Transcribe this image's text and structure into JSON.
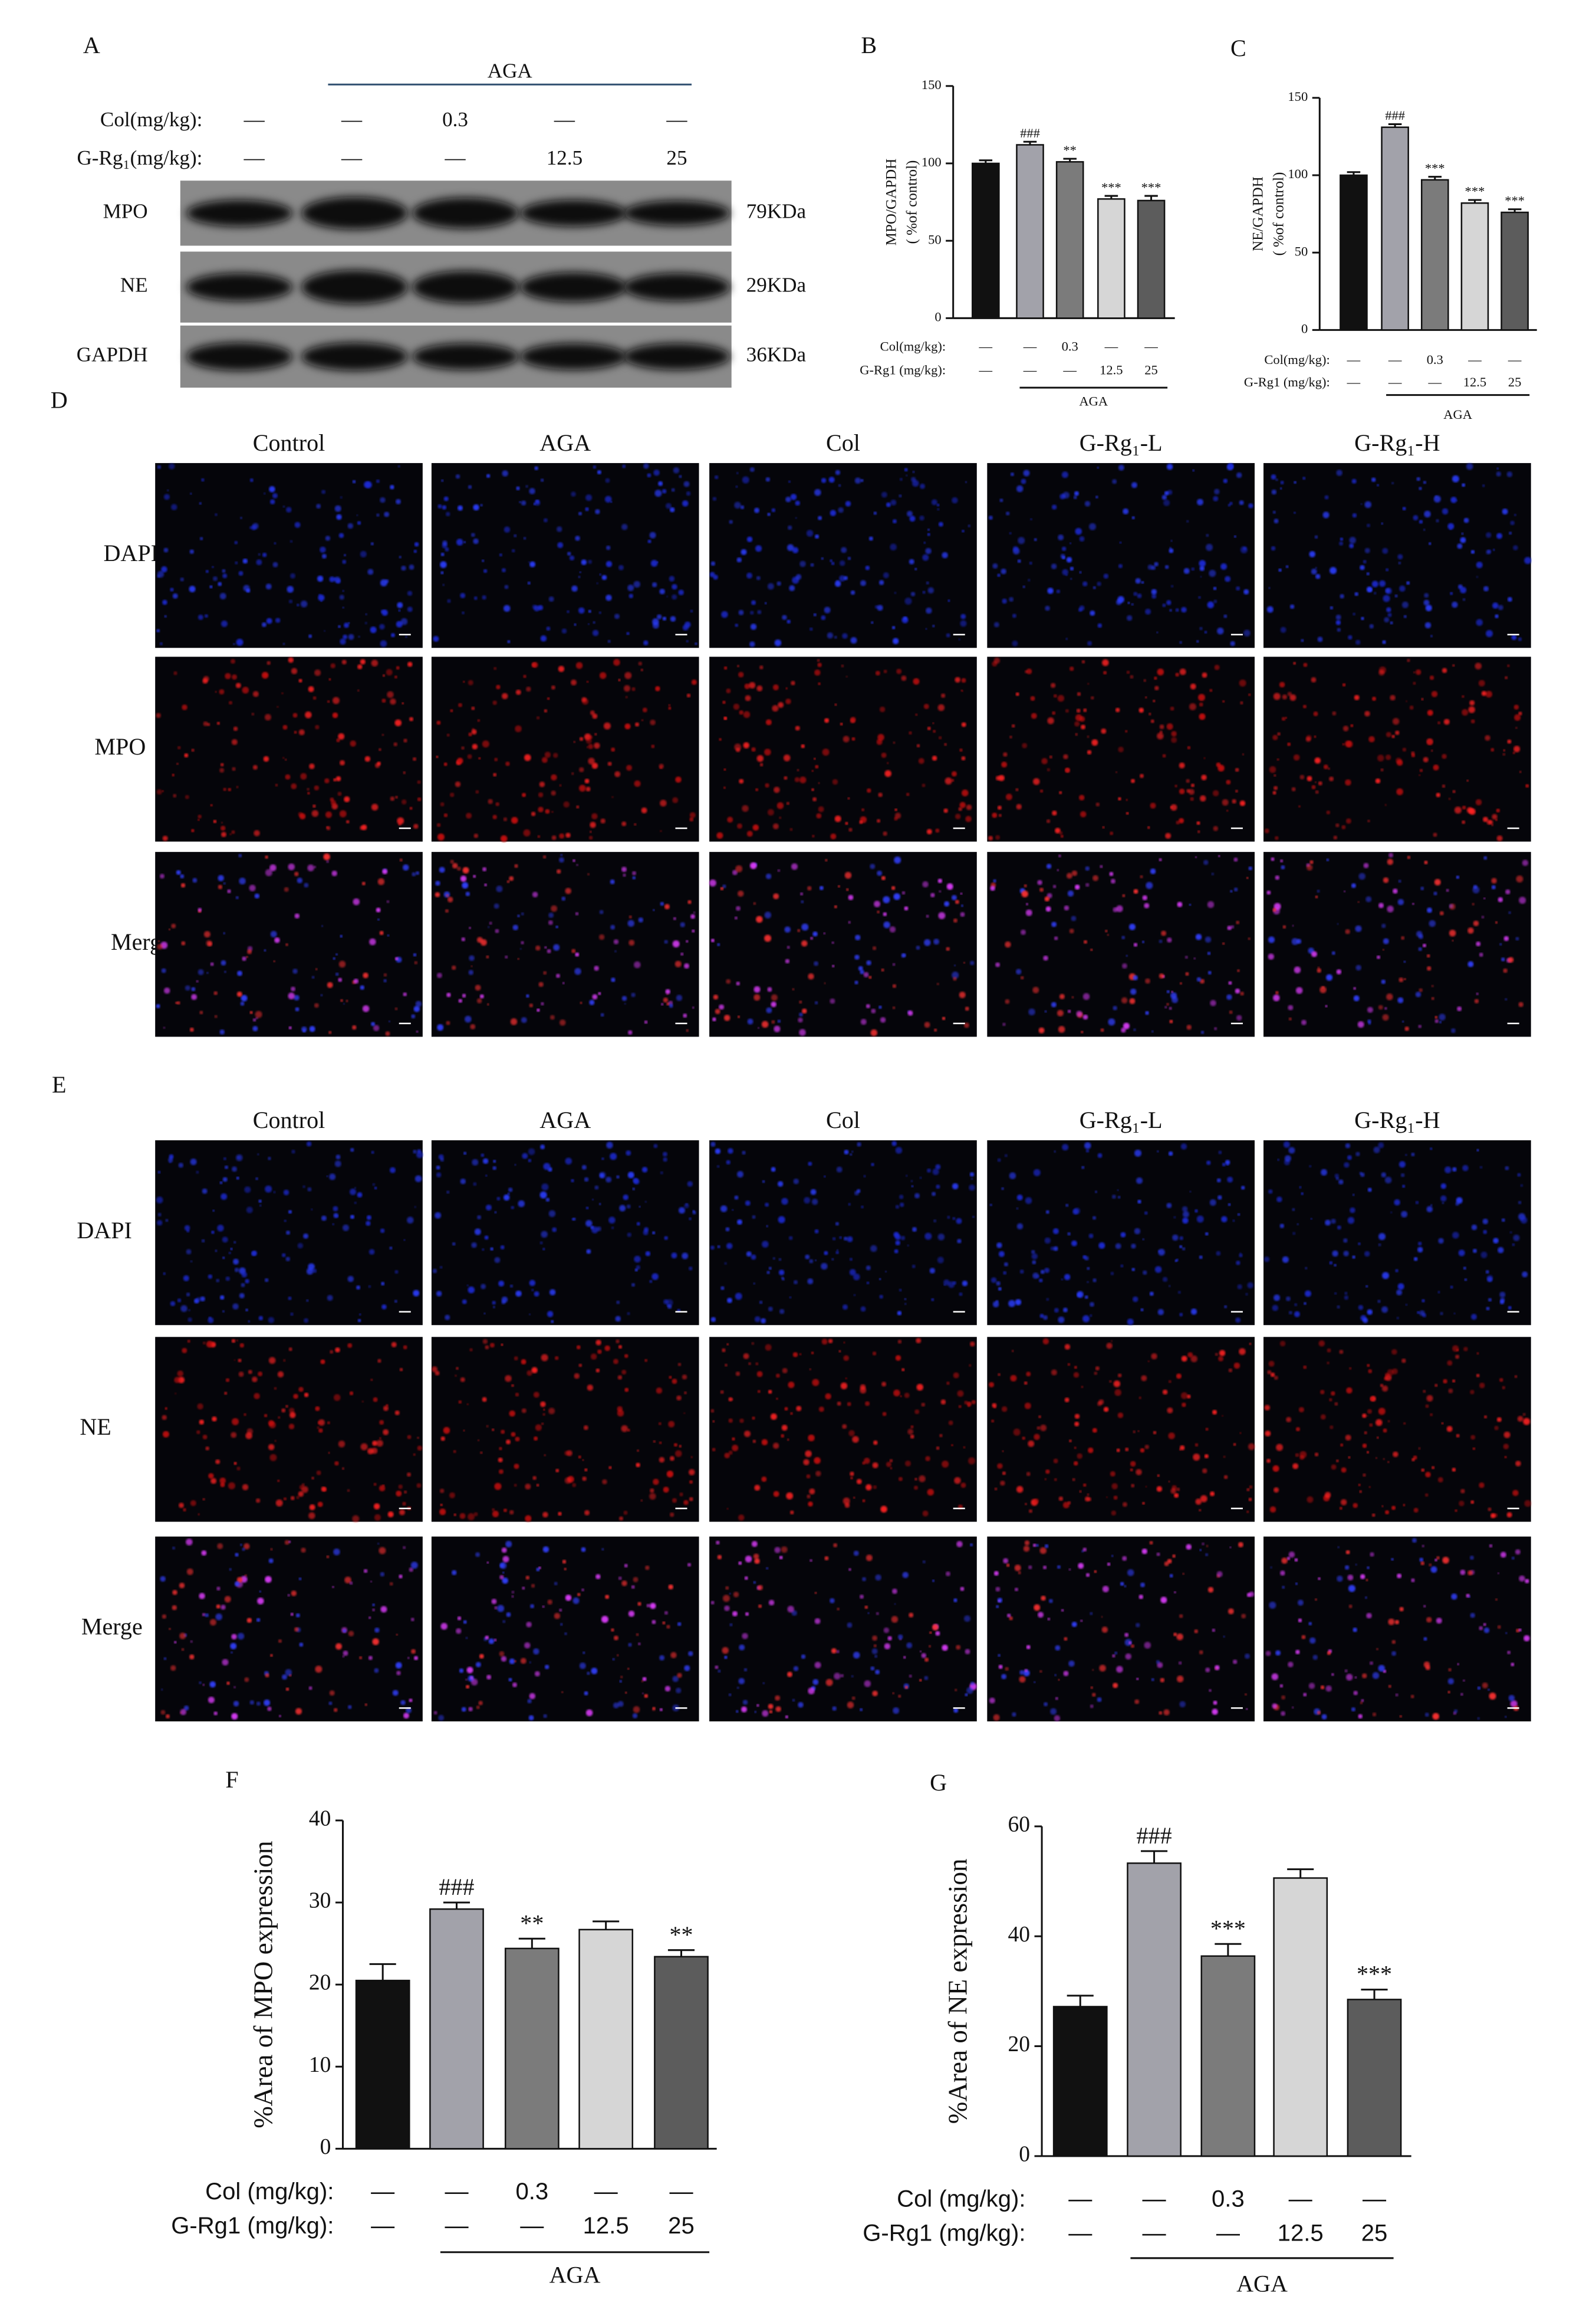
{
  "blot": {
    "label": "A",
    "group": "AGA",
    "rows": [
      {
        "name": "Col(mg/kg):",
        "values": [
          "—",
          "—",
          "0.3",
          "—",
          "—"
        ]
      },
      {
        "name": "G-Rg₁(mg/kg):",
        "values": [
          "—",
          "—",
          "—",
          "12.5",
          "25"
        ]
      }
    ],
    "bands": [
      {
        "name": "MPO",
        "size": "79KDa"
      },
      {
        "name": "NE",
        "size": "29KDa"
      },
      {
        "name": "GAPDH",
        "size": "36KDa"
      }
    ]
  },
  "if_panels": [
    {
      "label": "D",
      "columns": [
        "Control",
        "AGA",
        "Col",
        "G-Rg₁-L",
        "G-Rg₁-H"
      ],
      "rows": [
        "DAPI",
        "MPO",
        "Merge"
      ]
    },
    {
      "label": "E",
      "columns": [
        "Control",
        "AGA",
        "Col",
        "G-Rg₁-L",
        "G-Rg₁-H"
      ],
      "rows": [
        "DAPI",
        "NE",
        "Merge"
      ]
    }
  ],
  "chart_data": [
    {
      "type": "bar",
      "label": "B",
      "ylabel": [
        "MPO/GAPDH",
        "( %of control)"
      ],
      "ylim": [
        0,
        150
      ],
      "yticks": [
        0,
        50,
        100,
        150
      ],
      "values": [
        100,
        112,
        101,
        77,
        76
      ],
      "errors": [
        2,
        2,
        2,
        2,
        3
      ],
      "annotations": [
        null,
        "###",
        "**",
        "***",
        "***"
      ],
      "colors": [
        "#111111",
        "#a2a2aa",
        "#7b7b7b",
        "#d6d6d6",
        "#5c5c5c"
      ],
      "group": "AGA",
      "treatments": [
        {
          "name": "Col(mg/kg):",
          "values": [
            "—",
            "—",
            "0.3",
            "—",
            "—"
          ]
        },
        {
          "name": "G-Rg1 (mg/kg):",
          "values": [
            "—",
            "—",
            "—",
            "12.5",
            "25"
          ]
        }
      ]
    },
    {
      "type": "bar",
      "label": "C",
      "ylabel": [
        "NE/GAPDH",
        "( %of control)"
      ],
      "ylim": [
        0,
        150
      ],
      "yticks": [
        0,
        50,
        100,
        150
      ],
      "values": [
        100,
        131,
        97,
        82,
        76
      ],
      "errors": [
        2,
        2,
        2,
        2,
        2
      ],
      "annotations": [
        null,
        "###",
        "***",
        "***",
        "***"
      ],
      "colors": [
        "#111111",
        "#a2a2aa",
        "#7b7b7b",
        "#d6d6d6",
        "#5c5c5c"
      ],
      "group": "AGA",
      "treatments": [
        {
          "name": "Col(mg/kg):",
          "values": [
            "—",
            "—",
            "0.3",
            "—",
            "—"
          ]
        },
        {
          "name": "G-Rg1 (mg/kg):",
          "values": [
            "—",
            "—",
            "—",
            "12.5",
            "25"
          ]
        }
      ]
    },
    {
      "type": "bar",
      "label": "F",
      "ylabel": [
        "%Area of MPO expression"
      ],
      "ylim": [
        0,
        40
      ],
      "yticks": [
        0,
        10,
        20,
        30,
        40
      ],
      "values": [
        20.5,
        29.2,
        24.4,
        26.7,
        23.4
      ],
      "errors": [
        2,
        0.8,
        1.2,
        1,
        0.8
      ],
      "annotations": [
        null,
        "###",
        "**",
        null,
        "**"
      ],
      "colors": [
        "#111111",
        "#a2a2aa",
        "#7b7b7b",
        "#d6d6d6",
        "#5c5c5c"
      ],
      "group": "AGA",
      "treatments": [
        {
          "name": "Col (mg/kg):",
          "values": [
            "—",
            "—",
            "0.3",
            "—",
            "—"
          ]
        },
        {
          "name": "G-Rg1 (mg/kg):",
          "values": [
            "—",
            "—",
            "—",
            "12.5",
            "25"
          ]
        }
      ]
    },
    {
      "type": "bar",
      "label": "G",
      "ylabel": [
        "%Area of NE expression"
      ],
      "ylim": [
        0,
        60
      ],
      "yticks": [
        0,
        20,
        40,
        60
      ],
      "values": [
        27.2,
        53.3,
        36.4,
        50.6,
        28.5
      ],
      "errors": [
        2,
        2.2,
        2.2,
        1.6,
        1.8
      ],
      "annotations": [
        null,
        "###",
        "***",
        null,
        "***"
      ],
      "colors": [
        "#111111",
        "#a2a2aa",
        "#7b7b7b",
        "#d6d6d6",
        "#5c5c5c"
      ],
      "group": "AGA",
      "treatments": [
        {
          "name": "Col (mg/kg):",
          "values": [
            "—",
            "—",
            "0.3",
            "—",
            "—"
          ]
        },
        {
          "name": "G-Rg1 (mg/kg):",
          "values": [
            "—",
            "—",
            "—",
            "12.5",
            "25"
          ]
        }
      ]
    }
  ]
}
